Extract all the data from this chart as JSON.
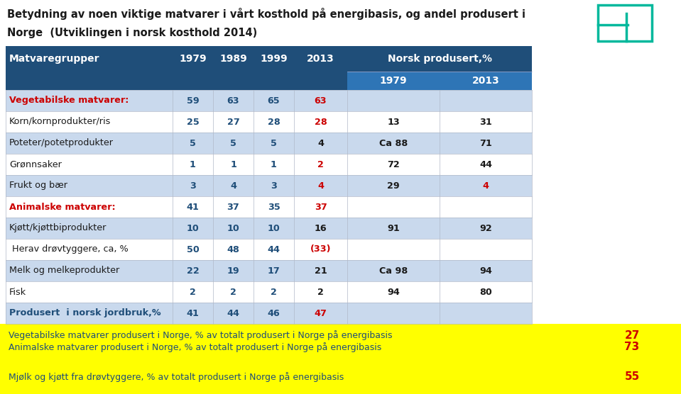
{
  "title_line1": "Betydning av noen viktige matvarer i vårt kosthold på energibasis, og andel produsert i",
  "title_line2": "Norge  (Utviklingen i norsk kosthold 2014)",
  "rows": [
    {
      "name": "Vegetabilske matvarer:",
      "vals": [
        "59",
        "63",
        "65",
        "63",
        "",
        ""
      ],
      "name_color": "#cc0000",
      "val_colors": [
        "#1f4e79",
        "#1f4e79",
        "#1f4e79",
        "#cc0000",
        "",
        ""
      ],
      "bold_name": true,
      "bg": "#c9d9ed"
    },
    {
      "name": "Korn/kornprodukter/ris",
      "vals": [
        "25",
        "27",
        "28",
        "28",
        "13",
        "31"
      ],
      "name_color": "#1a1a1a",
      "val_colors": [
        "#1f4e79",
        "#1f4e79",
        "#1f4e79",
        "#cc0000",
        "#1a1a1a",
        "#1a1a1a"
      ],
      "bold_name": false,
      "bg": "#ffffff"
    },
    {
      "name": "Poteter/potetprodukter",
      "vals": [
        "5",
        "5",
        "5",
        "4",
        "Ca 88",
        "71"
      ],
      "name_color": "#1a1a1a",
      "val_colors": [
        "#1f4e79",
        "#1f4e79",
        "#1f4e79",
        "#1a1a1a",
        "#1a1a1a",
        "#1a1a1a"
      ],
      "bold_name": false,
      "bg": "#c9d9ed"
    },
    {
      "name": "Grønnsaker",
      "vals": [
        "1",
        "1",
        "1",
        "2",
        "72",
        "44"
      ],
      "name_color": "#1a1a1a",
      "val_colors": [
        "#1f4e79",
        "#1f4e79",
        "#1f4e79",
        "#cc0000",
        "#1a1a1a",
        "#1a1a1a"
      ],
      "bold_name": false,
      "bg": "#ffffff"
    },
    {
      "name": "Frukt og bær",
      "vals": [
        "3",
        "4",
        "3",
        "4",
        "29",
        "4"
      ],
      "name_color": "#1a1a1a",
      "val_colors": [
        "#1f4e79",
        "#1f4e79",
        "#1f4e79",
        "#cc0000",
        "#1a1a1a",
        "#cc0000"
      ],
      "bold_name": false,
      "bg": "#c9d9ed"
    },
    {
      "name": "Animalske matvarer:",
      "vals": [
        "41",
        "37",
        "35",
        "37",
        "",
        ""
      ],
      "name_color": "#cc0000",
      "val_colors": [
        "#1f4e79",
        "#1f4e79",
        "#1f4e79",
        "#cc0000",
        "",
        ""
      ],
      "bold_name": true,
      "bg": "#ffffff"
    },
    {
      "name": "Kjøtt/kjøttbiprodukter",
      "vals": [
        "10",
        "10",
        "10",
        "16",
        "91",
        "92"
      ],
      "name_color": "#1a1a1a",
      "val_colors": [
        "#1f4e79",
        "#1f4e79",
        "#1f4e79",
        "#1a1a1a",
        "#1a1a1a",
        "#1a1a1a"
      ],
      "bold_name": false,
      "bg": "#c9d9ed"
    },
    {
      "name": " Herav drøvtyggere, ca, %",
      "vals": [
        "50",
        "48",
        "44",
        "(33)",
        "",
        ""
      ],
      "name_color": "#1a1a1a",
      "val_colors": [
        "#1f4e79",
        "#1f4e79",
        "#1f4e79",
        "#cc0000",
        "",
        ""
      ],
      "bold_name": false,
      "bg": "#ffffff"
    },
    {
      "name": "Melk og melkeprodukter",
      "vals": [
        "22",
        "19",
        "17",
        "21",
        "Ca 98",
        "94"
      ],
      "name_color": "#1a1a1a",
      "val_colors": [
        "#1f4e79",
        "#1f4e79",
        "#1f4e79",
        "#1a1a1a",
        "#1a1a1a",
        "#1a1a1a"
      ],
      "bold_name": false,
      "bg": "#c9d9ed"
    },
    {
      "name": "Fisk",
      "vals": [
        "2",
        "2",
        "2",
        "2",
        "94",
        "80"
      ],
      "name_color": "#1a1a1a",
      "val_colors": [
        "#1f4e79",
        "#1f4e79",
        "#1f4e79",
        "#1a1a1a",
        "#1a1a1a",
        "#1a1a1a"
      ],
      "bold_name": false,
      "bg": "#ffffff"
    },
    {
      "name": "Produsert  i norsk jordbruk,%",
      "vals": [
        "41",
        "44",
        "46",
        "47",
        "",
        ""
      ],
      "name_color": "#1f4e79",
      "val_colors": [
        "#1f4e79",
        "#1f4e79",
        "#1f4e79",
        "#cc0000",
        "",
        ""
      ],
      "bold_name": true,
      "bg": "#c9d9ed"
    }
  ],
  "footer_rows": [
    {
      "text": "Vegetabilske matvarer produsert i Norge, % av totalt produsert i Norge på energibasis",
      "value": "27"
    },
    {
      "text": "Animalske matvarer produsert i Norge, % av totalt produsert i Norge på energibasis",
      "value": "73"
    },
    {
      "text": "",
      "value": ""
    },
    {
      "text": "Mjølk og kjøtt fra drøvtyggere, % av totalt produsert i Norge på energibasis",
      "value": "55"
    }
  ],
  "header_bg": "#1f4e79",
  "header_text": "#ffffff",
  "subheader_bg": "#2e75b6",
  "footer_bg": "#ffff00",
  "footer_text_color": "#1f4e79",
  "footer_value_color": "#cc0000",
  "title_color": "#1a1a1a",
  "logo_color": "#00b89c",
  "logo_letter_color": "#1f4e79"
}
